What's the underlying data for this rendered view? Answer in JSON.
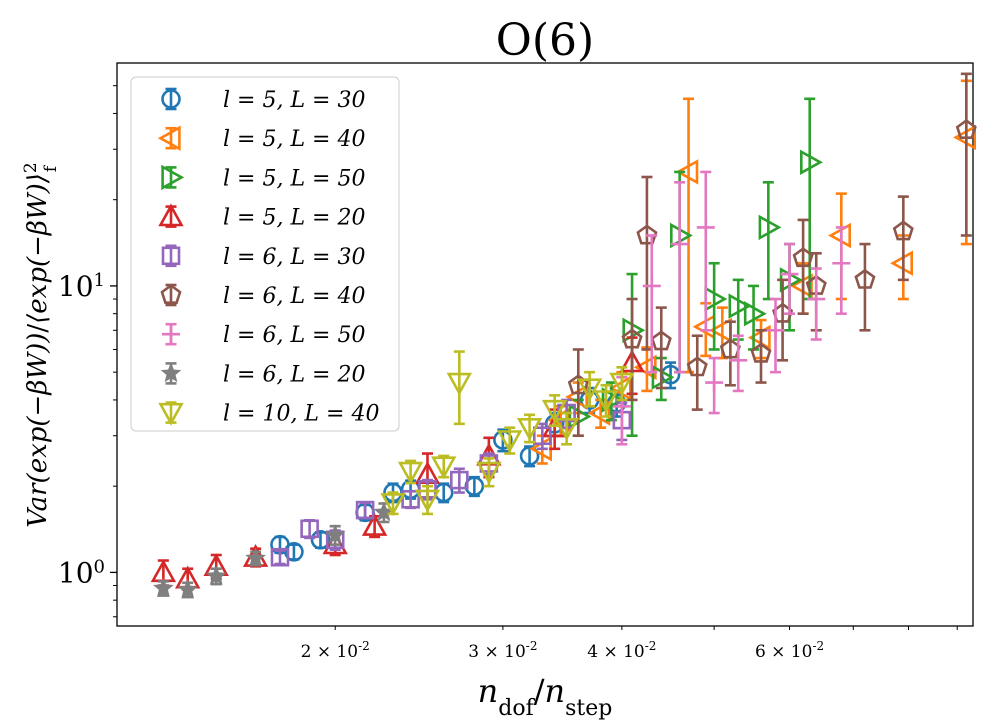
{
  "chart_data": {
    "type": "scatter",
    "title": "O(6)",
    "xlabel": "n_dof/n_step",
    "ylabel": "Var(exp(−βW))/⟨exp(−βW)⟩_f^2",
    "xscale": "log",
    "yscale": "log",
    "xlim": [
      0.0118,
      0.0935
    ],
    "ylim": [
      0.65,
      60
    ],
    "xticks": [
      {
        "value": 0.02,
        "label": "2 × 10^-2"
      },
      {
        "value": 0.03,
        "label": "3 × 10^-2"
      },
      {
        "value": 0.04,
        "label": "4 × 10^-2"
      },
      {
        "value": 0.06,
        "label": "6 × 10^-2"
      }
    ],
    "yticks": [
      {
        "value": 1,
        "label": "10^0"
      },
      {
        "value": 10,
        "label": "10^1"
      }
    ],
    "legend_position": "top-left",
    "series": [
      {
        "name": "l = 5, L = 30",
        "color": "#1f77b4",
        "marker": "circle",
        "points": [
          [
            0.0175,
            1.25,
            0.08
          ],
          [
            0.0181,
            1.18,
            0.07
          ],
          [
            0.0193,
            1.3,
            0.08
          ],
          [
            0.0215,
            1.62,
            0.1
          ],
          [
            0.023,
            1.9,
            0.14
          ],
          [
            0.024,
            1.95,
            0.14
          ],
          [
            0.026,
            1.9,
            0.14
          ],
          [
            0.028,
            2.0,
            0.15
          ],
          [
            0.03,
            2.9,
            0.25
          ],
          [
            0.032,
            2.55,
            0.2
          ],
          [
            0.034,
            3.3,
            0.3
          ],
          [
            0.037,
            4.0,
            0.4
          ],
          [
            0.0395,
            3.9,
            0.4
          ],
          [
            0.045,
            4.9,
            0.5
          ]
        ]
      },
      {
        "name": "l = 5, L = 40",
        "color": "#ff7f0e",
        "marker": "triangle-left",
        "points": [
          [
            0.033,
            2.7,
            0.3
          ],
          [
            0.0345,
            3.4,
            0.4
          ],
          [
            0.036,
            4.1,
            0.5
          ],
          [
            0.038,
            3.6,
            0.4
          ],
          [
            0.04,
            4.4,
            0.6
          ],
          [
            0.0425,
            5.2,
            0.9
          ],
          [
            0.047,
            25.0,
            20.0
          ],
          [
            0.049,
            7.2,
            1.5
          ],
          [
            0.051,
            7.0,
            1.4
          ],
          [
            0.056,
            6.6,
            1.0
          ],
          [
            0.062,
            10.0,
            2.0
          ],
          [
            0.068,
            15.0,
            6.0
          ],
          [
            0.079,
            12.0,
            3.0
          ],
          [
            0.092,
            33.0,
            19.0
          ]
        ]
      },
      {
        "name": "l = 5, L = 50",
        "color": "#2ca02c",
        "marker": "triangle-right",
        "points": [
          [
            0.036,
            3.5,
            0.5
          ],
          [
            0.039,
            4.0,
            0.6
          ],
          [
            0.041,
            7.0,
            4.0
          ],
          [
            0.044,
            4.8,
            0.8
          ],
          [
            0.046,
            15.0,
            10.0
          ],
          [
            0.05,
            9.0,
            3.0
          ],
          [
            0.053,
            8.5,
            2.0
          ],
          [
            0.055,
            8.0,
            2.0
          ],
          [
            0.057,
            16.0,
            7.0
          ],
          [
            0.06,
            10.5,
            3.5
          ],
          [
            0.063,
            27.0,
            18.0
          ]
        ]
      },
      {
        "name": "l = 5, L = 20",
        "color": "#d62728",
        "marker": "triangle-up",
        "points": [
          [
            0.0132,
            1.0,
            0.1
          ],
          [
            0.014,
            0.95,
            0.08
          ],
          [
            0.015,
            1.05,
            0.1
          ],
          [
            0.0165,
            1.13,
            0.08
          ],
          [
            0.02,
            1.25,
            0.1
          ],
          [
            0.022,
            1.45,
            0.12
          ],
          [
            0.025,
            2.2,
            0.4
          ],
          [
            0.029,
            2.55,
            0.4
          ],
          [
            0.034,
            3.2,
            0.5
          ],
          [
            0.041,
            5.4,
            1.2
          ]
        ]
      },
      {
        "name": "l = 6, L = 30",
        "color": "#9467bd",
        "marker": "square",
        "points": [
          [
            0.0175,
            1.13,
            0.06
          ],
          [
            0.0188,
            1.42,
            0.1
          ],
          [
            0.02,
            1.3,
            0.1
          ],
          [
            0.0215,
            1.65,
            0.1
          ],
          [
            0.024,
            1.8,
            0.12
          ],
          [
            0.025,
            1.95,
            0.15
          ],
          [
            0.027,
            2.1,
            0.2
          ],
          [
            0.029,
            2.4,
            0.2
          ],
          [
            0.033,
            3.0,
            0.3
          ],
          [
            0.035,
            3.6,
            0.4
          ],
          [
            0.04,
            3.4,
            0.5
          ]
        ]
      },
      {
        "name": "l = 6, L = 40",
        "color": "#8c564b",
        "marker": "pentagon",
        "points": [
          [
            0.036,
            4.5,
            1.5
          ],
          [
            0.041,
            6.5,
            2.5
          ],
          [
            0.0425,
            15.0,
            9.0
          ],
          [
            0.044,
            6.4,
            2.0
          ],
          [
            0.048,
            5.2,
            1.5
          ],
          [
            0.052,
            6.0,
            1.5
          ],
          [
            0.056,
            5.8,
            1.2
          ],
          [
            0.059,
            8.0,
            2.5
          ],
          [
            0.062,
            12.5,
            4.5
          ],
          [
            0.064,
            10.0,
            3.0
          ],
          [
            0.072,
            10.5,
            3.5
          ],
          [
            0.079,
            15.5,
            5.0
          ],
          [
            0.092,
            35.0,
            20.0
          ]
        ]
      },
      {
        "name": "l = 6, L = 50",
        "color": "#e377c2",
        "marker": "plus",
        "points": [
          [
            0.04,
            3.8,
            1.0
          ],
          [
            0.043,
            10.0,
            5.0
          ],
          [
            0.046,
            14.0,
            9.0
          ],
          [
            0.049,
            16.0,
            9.0
          ],
          [
            0.05,
            4.6,
            1.0
          ],
          [
            0.053,
            5.5,
            1.2
          ],
          [
            0.058,
            7.0,
            2.0
          ],
          [
            0.06,
            11.0,
            3.0
          ],
          [
            0.064,
            9.0,
            2.5
          ],
          [
            0.068,
            12.0,
            4.0
          ]
        ]
      },
      {
        "name": "l = 6, L = 20",
        "color": "#7f7f7f",
        "marker": "star",
        "points": [
          [
            0.0132,
            0.88,
            0.05
          ],
          [
            0.014,
            0.87,
            0.05
          ],
          [
            0.015,
            0.97,
            0.06
          ],
          [
            0.0165,
            1.12,
            0.06
          ],
          [
            0.02,
            1.35,
            0.1
          ],
          [
            0.0225,
            1.62,
            0.12
          ]
        ]
      },
      {
        "name": "l = 10, L = 40",
        "color": "#bcbd22",
        "marker": "triangle-down",
        "points": [
          [
            0.023,
            1.75,
            0.15
          ],
          [
            0.024,
            2.25,
            0.2
          ],
          [
            0.025,
            1.8,
            0.2
          ],
          [
            0.026,
            2.35,
            0.2
          ],
          [
            0.027,
            4.6,
            1.3
          ],
          [
            0.029,
            2.25,
            0.25
          ],
          [
            0.0305,
            2.9,
            0.3
          ],
          [
            0.032,
            3.2,
            0.35
          ],
          [
            0.034,
            3.7,
            0.45
          ],
          [
            0.035,
            3.2,
            0.4
          ],
          [
            0.037,
            4.4,
            0.6
          ],
          [
            0.0385,
            4.0,
            0.5
          ],
          [
            0.04,
            4.6,
            0.6
          ]
        ]
      }
    ]
  }
}
